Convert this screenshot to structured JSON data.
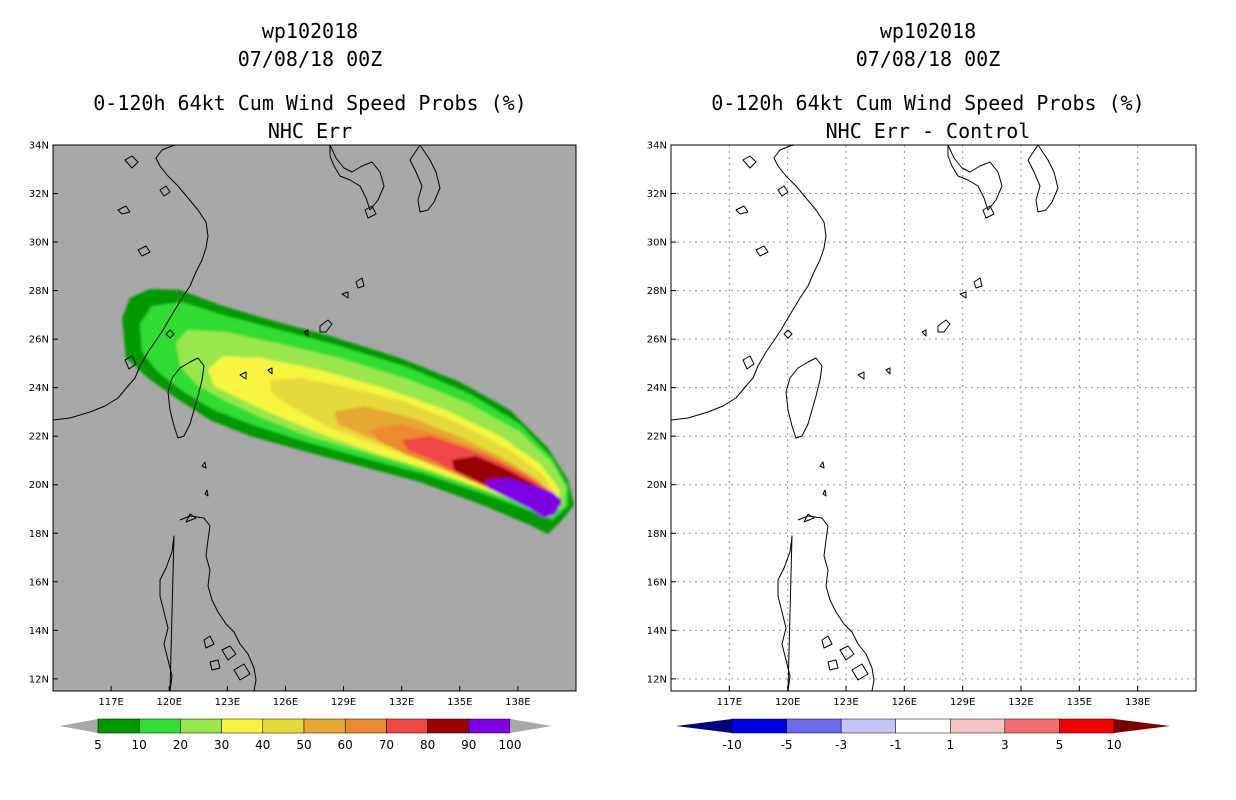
{
  "chart_data": [
    {
      "type": "heatmap",
      "panel": "left",
      "title_lines": [
        "wp102018",
        "07/08/18 00Z",
        "0-120h 64kt Cum Wind Speed Probs (%)",
        "NHC Err"
      ],
      "xlabel": "",
      "ylabel": "",
      "x_ticks": [
        "117E",
        "120E",
        "123E",
        "126E",
        "129E",
        "132E",
        "135E",
        "138E"
      ],
      "y_ticks": [
        "12N",
        "14N",
        "16N",
        "18N",
        "20N",
        "22N",
        "24N",
        "26N",
        "28N",
        "30N",
        "32N",
        "34N"
      ],
      "xlim": [
        114.0,
        141.0
      ],
      "ylim": [
        11.5,
        34.0
      ],
      "grid": false,
      "background": "#a8a8a8",
      "colorbar": {
        "labels": [
          "5",
          "10",
          "20",
          "30",
          "40",
          "50",
          "60",
          "70",
          "80",
          "90",
          "100"
        ],
        "colors": [
          "#009900",
          "#33dd33",
          "#99e64d",
          "#f5f542",
          "#e6d93a",
          "#e6a833",
          "#eb8a2e",
          "#f04747",
          "#990000",
          "#8000e6"
        ],
        "under_color": "#a8a8a8",
        "over_color": "#a8a8a8"
      },
      "probability_swath": {
        "track_points": [
          [
            124.5,
            25.0
          ],
          [
            129.5,
            22.8
          ],
          [
            133.0,
            21.6
          ],
          [
            136.0,
            20.3
          ],
          [
            139.0,
            19.4
          ]
        ],
        "levels_percent": [
          5,
          10,
          20,
          30,
          40,
          50,
          60,
          70,
          80,
          90
        ],
        "max_percent": 100
      }
    },
    {
      "type": "heatmap",
      "panel": "right",
      "title_lines": [
        "wp102018",
        "07/08/18 00Z",
        "0-120h 64kt Cum Wind Speed Probs (%)",
        "NHC Err - Control"
      ],
      "xlabel": "",
      "ylabel": "",
      "x_ticks": [
        "117E",
        "120E",
        "123E",
        "126E",
        "129E",
        "132E",
        "135E",
        "138E"
      ],
      "y_ticks": [
        "12N",
        "14N",
        "16N",
        "18N",
        "20N",
        "22N",
        "24N",
        "26N",
        "28N",
        "30N",
        "32N",
        "34N"
      ],
      "xlim": [
        114.0,
        141.0
      ],
      "ylim": [
        11.5,
        34.0
      ],
      "grid": true,
      "background": "#ffffff",
      "colorbar": {
        "labels": [
          "-10",
          "-5",
          "-3",
          "-1",
          "1",
          "3",
          "5",
          "10"
        ],
        "colors": [
          "#0000e6",
          "#6b6bf0",
          "#c4c4f5",
          "#ffffff",
          "#f5c4c4",
          "#f07070",
          "#f00000"
        ],
        "under_color": "#00007a",
        "over_color": "#7a0000"
      },
      "difference_field": "all values between -1 and 1"
    }
  ]
}
